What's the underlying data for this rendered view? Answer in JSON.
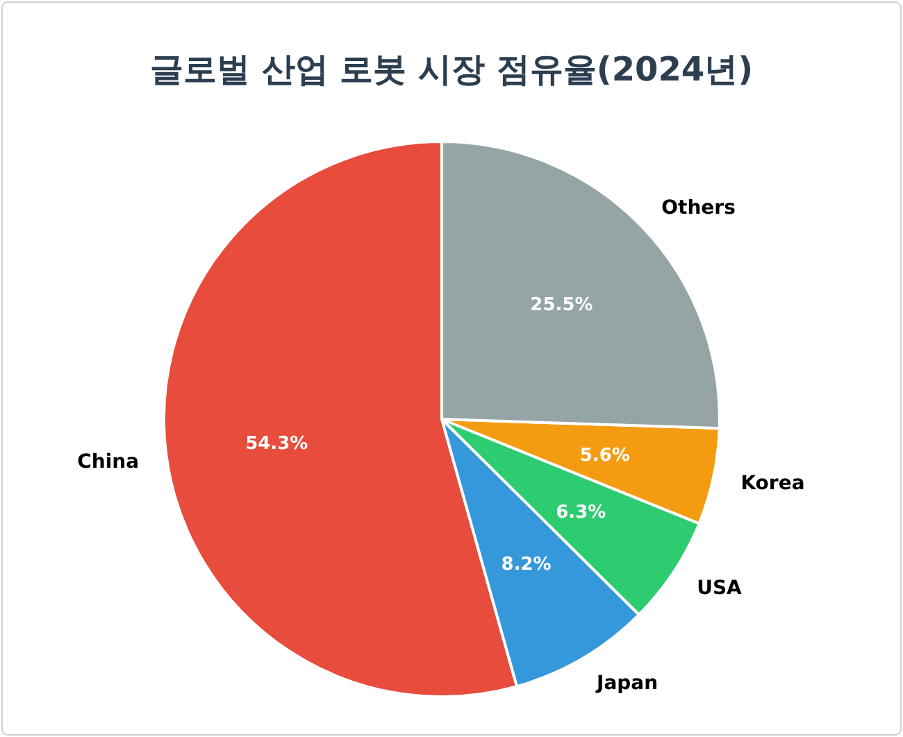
{
  "chart_data": {
    "type": "pie",
    "title": "글로벌 산업 로봇 시장 점유율(2024년)",
    "categories": [
      "China",
      "Japan",
      "USA",
      "Korea",
      "Others"
    ],
    "values": [
      54.3,
      8.2,
      6.3,
      5.6,
      25.5
    ],
    "colors": [
      "#e74c3c",
      "#3498db",
      "#2ecc71",
      "#f39c12",
      "#95a5a6"
    ],
    "value_labels": [
      "54.3%",
      "8.2%",
      "6.3%",
      "5.6%",
      "25.5%"
    ]
  }
}
